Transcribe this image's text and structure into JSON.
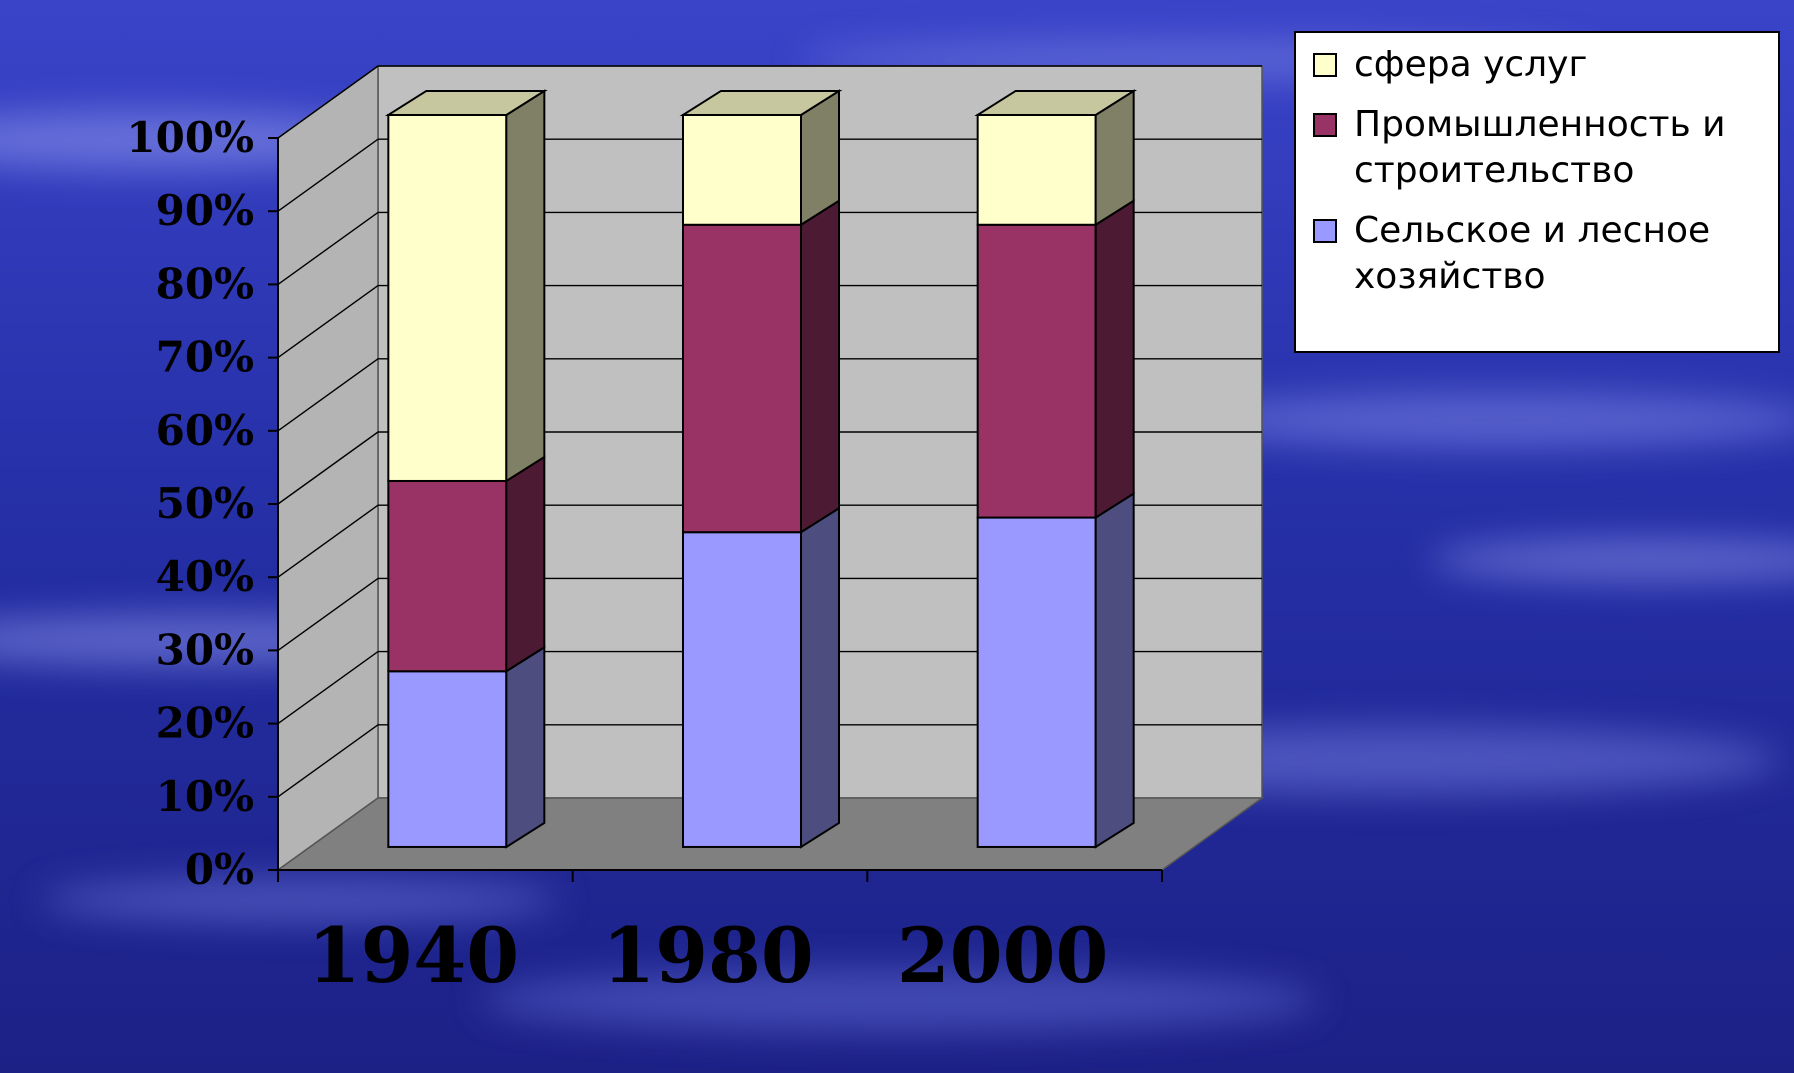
{
  "chart_data": {
    "type": "bar",
    "stacked": true,
    "percent_stacked": true,
    "three_d": true,
    "categories": [
      "1940",
      "1980",
      "2000"
    ],
    "series": [
      {
        "name": "сфера услуг",
        "values": [
          24,
          43,
          45
        ],
        "color": "#9999FF"
      },
      {
        "name": "Промышленность и строительство",
        "values": [
          26,
          42,
          40
        ],
        "color": "#993366"
      },
      {
        "name": "Сельское и лесное хозяйство",
        "values": [
          50,
          15,
          15
        ],
        "color": "#FFFFCC"
      }
    ],
    "legend_order": [
      2,
      1,
      0
    ],
    "legend_lines": [
      [
        "Сельское и лесное",
        "хозяйство"
      ],
      [
        "Промышленность и",
        "строительство"
      ],
      [
        "сфера услуг"
      ]
    ],
    "yticks": [
      "0%",
      "10%",
      "20%",
      "30%",
      "40%",
      "50%",
      "60%",
      "70%",
      "80%",
      "90%",
      "100%"
    ],
    "ylim": [
      0,
      100
    ],
    "grid": true,
    "legend_position": "top-right",
    "colors": {
      "background_top": "#2b35b8",
      "background_bottom": "#1a1f80",
      "wall": "#c0c0c0",
      "floor": "#808080",
      "legend_bg": "#ffffff"
    }
  }
}
